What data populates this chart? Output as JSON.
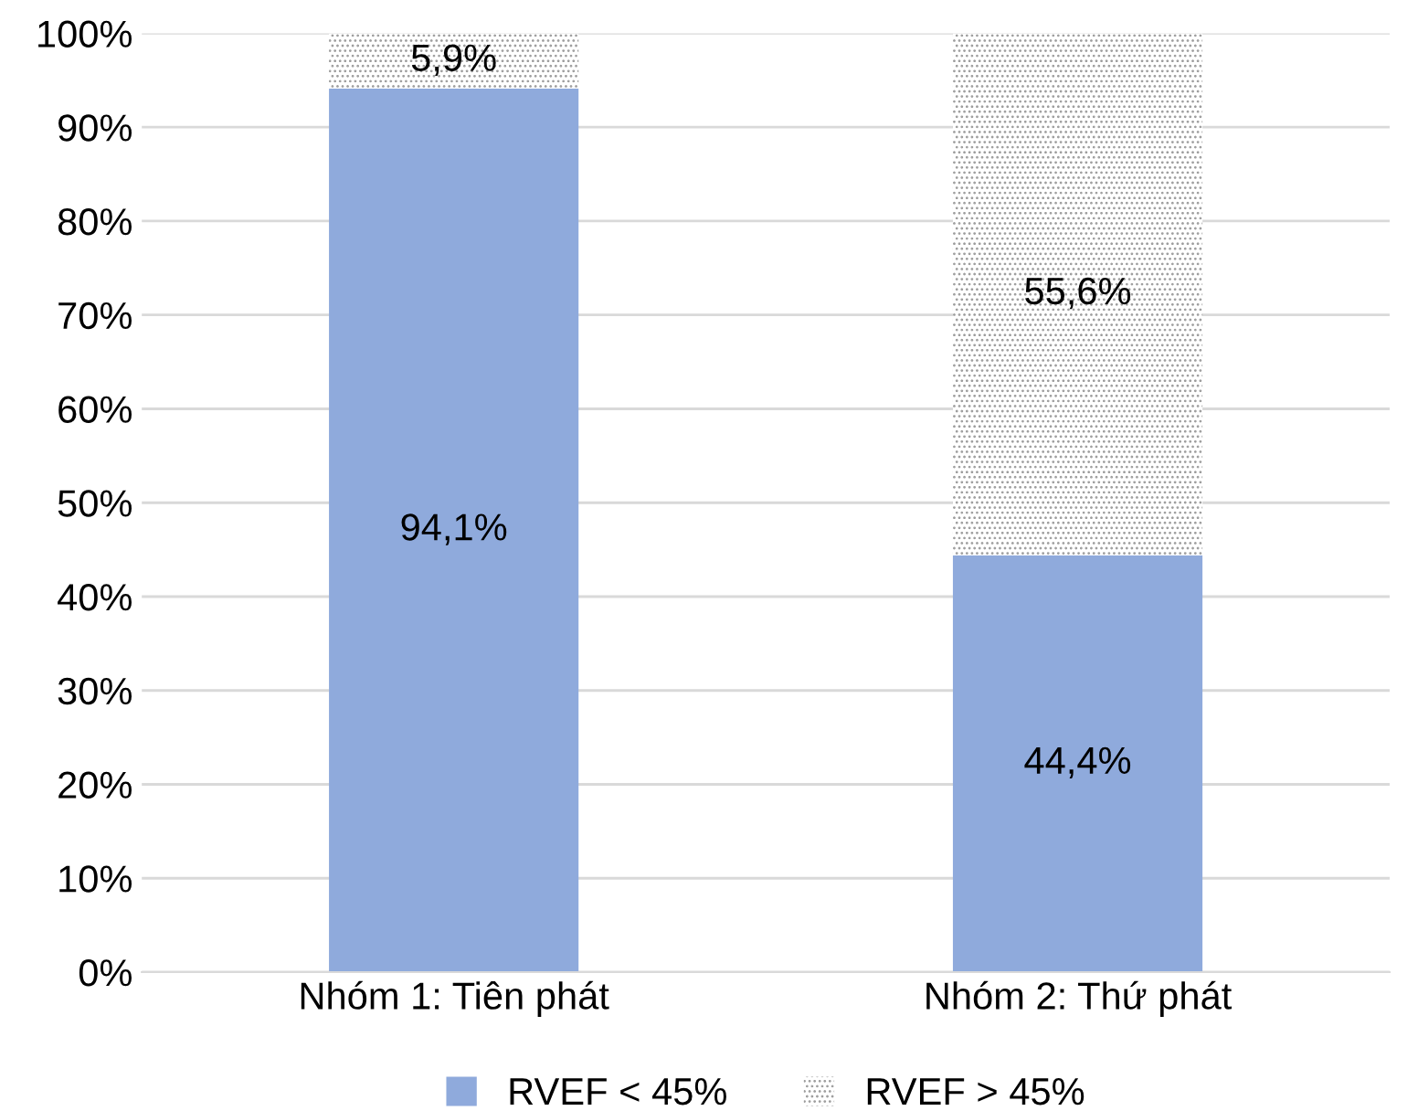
{
  "chart_data": {
    "type": "bar",
    "stacked": true,
    "categories": [
      "Nhóm 1: Tiên phát",
      "Nhóm 2: Thứ phát"
    ],
    "series": [
      {
        "name": "RVEF < 45%",
        "color": "#8faadc",
        "values": [
          94.1,
          44.4
        ],
        "value_labels": [
          "94,1%",
          "44,4%"
        ]
      },
      {
        "name": "RVEF > 45%",
        "color": "#e4e4e4",
        "values": [
          5.9,
          55.6
        ],
        "value_labels": [
          "5,9%",
          "55,6%"
        ]
      }
    ],
    "ylim": [
      0,
      100
    ],
    "yticks": [
      {
        "value": 0,
        "label": "0%"
      },
      {
        "value": 10,
        "label": "10%"
      },
      {
        "value": 20,
        "label": "20%"
      },
      {
        "value": 30,
        "label": "30%"
      },
      {
        "value": 40,
        "label": "40%"
      },
      {
        "value": 50,
        "label": "50%"
      },
      {
        "value": 60,
        "label": "60%"
      },
      {
        "value": 70,
        "label": "70%"
      },
      {
        "value": 80,
        "label": "80%"
      },
      {
        "value": 90,
        "label": "90%"
      },
      {
        "value": 100,
        "label": "100%"
      }
    ],
    "grid": "y",
    "legend": "bottom"
  }
}
